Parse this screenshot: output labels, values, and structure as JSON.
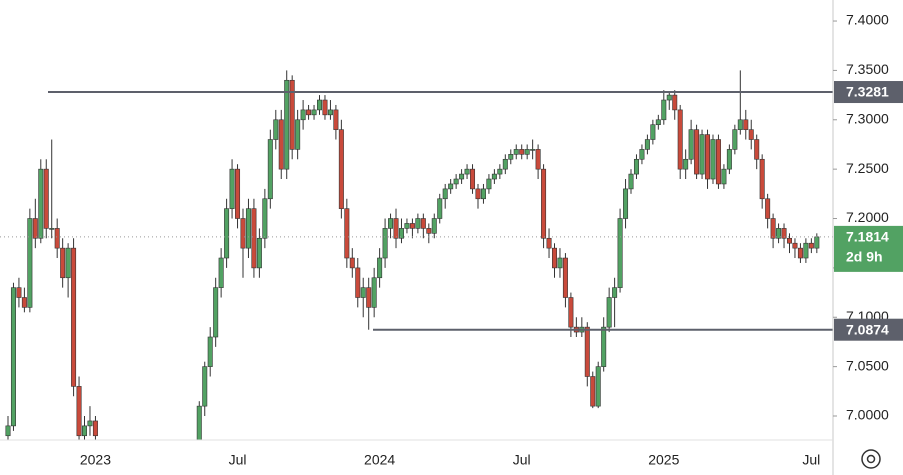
{
  "chart_data": {
    "type": "candlestick",
    "up_color": "#52a263",
    "down_color": "#c94a3b",
    "categories": [
      null,
      null,
      null,
      null,
      null,
      null,
      null,
      null,
      null,
      null,
      null,
      null,
      null,
      null,
      null,
      null,
      "2023",
      null,
      null,
      null,
      null,
      null,
      null,
      null,
      null,
      null,
      null,
      null,
      null,
      null,
      null,
      null,
      null,
      null,
      null,
      null,
      null,
      null,
      null,
      null,
      null,
      null,
      "Jul",
      null,
      null,
      null,
      null,
      null,
      null,
      null,
      null,
      null,
      null,
      null,
      null,
      null,
      null,
      null,
      null,
      null,
      null,
      null,
      null,
      null,
      null,
      null,
      null,
      null,
      "2024",
      null,
      null,
      null,
      null,
      null,
      null,
      null,
      null,
      null,
      null,
      null,
      null,
      null,
      null,
      null,
      null,
      null,
      null,
      null,
      null,
      null,
      null,
      null,
      null,
      null,
      "Jul",
      null,
      null,
      null,
      null,
      null,
      null,
      null,
      null,
      null,
      null,
      null,
      null,
      null,
      null,
      null,
      null,
      null,
      null,
      null,
      null,
      null,
      null,
      null,
      null,
      null,
      "2025",
      null,
      null,
      null,
      null,
      null,
      null,
      null,
      null,
      null,
      null,
      null,
      null,
      null,
      null,
      null,
      null,
      null,
      null,
      null,
      null,
      null,
      null,
      null,
      null,
      null,
      null,
      "Jul",
      null
    ],
    "ohlc": [
      [
        6.98,
        7.0,
        6.97,
        6.99
      ],
      [
        6.99,
        7.135,
        6.985,
        7.13
      ],
      [
        7.13,
        7.14,
        7.11,
        7.12
      ],
      [
        7.12,
        7.13,
        7.105,
        7.11
      ],
      [
        7.11,
        7.21,
        7.105,
        7.2
      ],
      [
        7.2,
        7.22,
        7.17,
        7.18
      ],
      [
        7.18,
        7.26,
        7.175,
        7.25
      ],
      [
        7.25,
        7.26,
        7.18,
        7.19
      ],
      [
        7.19,
        7.28,
        7.18,
        7.19
      ],
      [
        7.19,
        7.2,
        7.16,
        7.17
      ],
      [
        7.17,
        7.18,
        7.13,
        7.14
      ],
      [
        7.14,
        7.175,
        7.12,
        7.17
      ],
      [
        7.17,
        7.18,
        7.02,
        7.03
      ],
      [
        7.03,
        7.04,
        6.97,
        6.98
      ],
      [
        6.98,
        7.0,
        6.97,
        6.99
      ],
      [
        6.99,
        7.01,
        6.98,
        6.995
      ],
      [
        6.995,
        7.0,
        6.97,
        6.98
      ],
      null,
      null,
      null,
      null,
      null,
      null,
      null,
      null,
      null,
      null,
      null,
      null,
      null,
      null,
      null,
      null,
      null,
      null,
      [
        6.97,
        7.015,
        6.96,
        7.01
      ],
      [
        7.01,
        7.055,
        7.0,
        7.05
      ],
      [
        7.05,
        7.09,
        7.04,
        7.08
      ],
      [
        7.08,
        7.14,
        7.07,
        7.13
      ],
      [
        7.13,
        7.17,
        7.12,
        7.16
      ],
      [
        7.16,
        7.22,
        7.15,
        7.21
      ],
      [
        7.21,
        7.26,
        7.2,
        7.25
      ],
      [
        7.25,
        7.255,
        7.19,
        7.2
      ],
      [
        7.2,
        7.21,
        7.14,
        7.17
      ],
      [
        7.17,
        7.22,
        7.16,
        7.21
      ],
      [
        7.21,
        7.22,
        7.14,
        7.15
      ],
      [
        7.15,
        7.19,
        7.14,
        7.18
      ],
      [
        7.18,
        7.23,
        7.17,
        7.22
      ],
      [
        7.22,
        7.29,
        7.21,
        7.28
      ],
      [
        7.28,
        7.31,
        7.27,
        7.3
      ],
      [
        7.3,
        7.31,
        7.24,
        7.25
      ],
      [
        7.25,
        7.35,
        7.24,
        7.34
      ],
      [
        7.34,
        7.345,
        7.26,
        7.27
      ],
      [
        7.27,
        7.31,
        7.26,
        7.3
      ],
      [
        7.3,
        7.32,
        7.29,
        7.31
      ],
      [
        7.31,
        7.315,
        7.3,
        7.305
      ],
      [
        7.305,
        7.315,
        7.3,
        7.31
      ],
      [
        7.31,
        7.325,
        7.305,
        7.32
      ],
      [
        7.32,
        7.325,
        7.3,
        7.305
      ],
      [
        7.305,
        7.32,
        7.3,
        7.31
      ],
      [
        7.31,
        7.315,
        7.28,
        7.29
      ],
      [
        7.29,
        7.3,
        7.2,
        7.21
      ],
      [
        7.21,
        7.22,
        7.15,
        7.16
      ],
      [
        7.16,
        7.17,
        7.14,
        7.15
      ],
      [
        7.15,
        7.16,
        7.11,
        7.12
      ],
      [
        7.12,
        7.14,
        7.1,
        7.13
      ],
      [
        7.13,
        7.14,
        7.0874,
        7.11
      ],
      [
        7.11,
        7.15,
        7.1,
        7.14
      ],
      [
        7.14,
        7.17,
        7.13,
        7.16
      ],
      [
        7.16,
        7.2,
        7.15,
        7.19
      ],
      [
        7.19,
        7.205,
        7.18,
        7.2
      ],
      [
        7.2,
        7.21,
        7.17,
        7.18
      ],
      [
        7.18,
        7.2,
        7.175,
        7.19
      ],
      [
        7.19,
        7.2,
        7.185,
        7.195
      ],
      [
        7.195,
        7.2,
        7.18,
        7.19
      ],
      [
        7.19,
        7.205,
        7.185,
        7.2
      ],
      [
        7.2,
        7.205,
        7.18,
        7.19
      ],
      [
        7.19,
        7.195,
        7.175,
        7.185
      ],
      [
        7.185,
        7.205,
        7.18,
        7.2
      ],
      [
        7.2,
        7.225,
        7.195,
        7.22
      ],
      [
        7.22,
        7.235,
        7.21,
        7.23
      ],
      [
        7.23,
        7.24,
        7.225,
        7.235
      ],
      [
        7.235,
        7.245,
        7.23,
        7.24
      ],
      [
        7.24,
        7.25,
        7.235,
        7.245
      ],
      [
        7.245,
        7.255,
        7.24,
        7.25
      ],
      [
        7.25,
        7.255,
        7.225,
        7.23
      ],
      [
        7.23,
        7.235,
        7.21,
        7.22
      ],
      [
        7.22,
        7.235,
        7.215,
        7.23
      ],
      [
        7.23,
        7.245,
        7.225,
        7.24
      ],
      [
        7.24,
        7.25,
        7.235,
        7.245
      ],
      [
        7.245,
        7.255,
        7.24,
        7.25
      ],
      [
        7.25,
        7.265,
        7.245,
        7.26
      ],
      [
        7.26,
        7.27,
        7.255,
        7.265
      ],
      [
        7.265,
        7.275,
        7.26,
        7.27
      ],
      [
        7.27,
        7.275,
        7.26,
        7.265
      ],
      [
        7.265,
        7.275,
        7.26,
        7.27
      ],
      [
        7.27,
        7.28,
        7.26,
        7.27
      ],
      [
        7.27,
        7.275,
        7.24,
        7.25
      ],
      [
        7.25,
        7.255,
        7.17,
        7.18
      ],
      [
        7.18,
        7.19,
        7.16,
        7.17
      ],
      [
        7.17,
        7.175,
        7.14,
        7.15
      ],
      [
        7.15,
        7.17,
        7.14,
        7.16
      ],
      [
        7.16,
        7.165,
        7.11,
        7.12
      ],
      [
        7.12,
        7.125,
        7.08,
        7.09
      ],
      [
        7.09,
        7.1,
        7.08,
        7.085
      ],
      [
        7.085,
        7.1,
        7.08,
        7.09
      ],
      [
        7.09,
        7.095,
        7.03,
        7.04
      ],
      [
        7.04,
        7.045,
        7.008,
        7.01
      ],
      [
        7.01,
        7.055,
        7.008,
        7.05
      ],
      [
        7.05,
        7.1,
        7.045,
        7.09
      ],
      [
        7.09,
        7.13,
        7.085,
        7.12
      ],
      [
        7.12,
        7.14,
        7.09,
        7.13
      ],
      [
        7.13,
        7.21,
        7.125,
        7.2
      ],
      [
        7.2,
        7.24,
        7.19,
        7.23
      ],
      [
        7.23,
        7.25,
        7.225,
        7.245
      ],
      [
        7.245,
        7.265,
        7.24,
        7.26
      ],
      [
        7.26,
        7.275,
        7.255,
        7.27
      ],
      [
        7.27,
        7.285,
        7.265,
        7.28
      ],
      [
        7.28,
        7.3,
        7.275,
        7.295
      ],
      [
        7.295,
        7.305,
        7.29,
        7.3
      ],
      [
        7.3,
        7.33,
        7.295,
        7.32
      ],
      [
        7.32,
        7.3281,
        7.31,
        7.325
      ],
      [
        7.325,
        7.33,
        7.3,
        7.31
      ],
      [
        7.31,
        7.315,
        7.24,
        7.25
      ],
      [
        7.25,
        7.27,
        7.24,
        7.26
      ],
      [
        7.26,
        7.3,
        7.255,
        7.29
      ],
      [
        7.29,
        7.295,
        7.24,
        7.245
      ],
      [
        7.245,
        7.29,
        7.24,
        7.285
      ],
      [
        7.285,
        7.29,
        7.23,
        7.24
      ],
      [
        7.24,
        7.285,
        7.235,
        7.28
      ],
      [
        7.28,
        7.285,
        7.23,
        7.235
      ],
      [
        7.235,
        7.255,
        7.23,
        7.25
      ],
      [
        7.25,
        7.275,
        7.245,
        7.27
      ],
      [
        7.27,
        7.295,
        7.265,
        7.29
      ],
      [
        7.29,
        7.35,
        7.285,
        7.3
      ],
      [
        7.3,
        7.31,
        7.28,
        7.29
      ],
      [
        7.29,
        7.3,
        7.27,
        7.28
      ],
      [
        7.28,
        7.285,
        7.25,
        7.26
      ],
      [
        7.26,
        7.265,
        7.21,
        7.22
      ],
      [
        7.22,
        7.225,
        7.19,
        7.2
      ],
      [
        7.2,
        7.205,
        7.17,
        7.18
      ],
      [
        7.18,
        7.195,
        7.175,
        7.19
      ],
      [
        7.19,
        7.195,
        7.17,
        7.18
      ],
      [
        7.18,
        7.185,
        7.165,
        7.175
      ],
      [
        7.175,
        7.18,
        7.16,
        7.17
      ],
      [
        7.17,
        7.175,
        7.155,
        7.16
      ],
      [
        7.16,
        7.18,
        7.155,
        7.175
      ],
      [
        7.175,
        7.18,
        7.165,
        7.17
      ],
      [
        7.17,
        7.185,
        7.165,
        7.1814
      ]
    ],
    "ylim": [
      6.9757,
      7.4213
    ],
    "yticks": [
      {
        "value": 7.0,
        "label": "7.0000"
      },
      {
        "value": 7.05,
        "label": "7.0500"
      },
      {
        "value": 7.1,
        "label": "7.1000"
      },
      {
        "value": 7.15,
        "label": "7.1500"
      },
      {
        "value": 7.2,
        "label": "7.2000"
      },
      {
        "value": 7.25,
        "label": "7.2500"
      },
      {
        "value": 7.3,
        "label": "7.3000"
      },
      {
        "value": 7.35,
        "label": "7.3500"
      },
      {
        "value": 7.4,
        "label": "7.4000"
      }
    ],
    "levels": [
      7.3281,
      7.0874
    ],
    "level_color": "#5d606b",
    "countdown": "2d 9h"
  }
}
